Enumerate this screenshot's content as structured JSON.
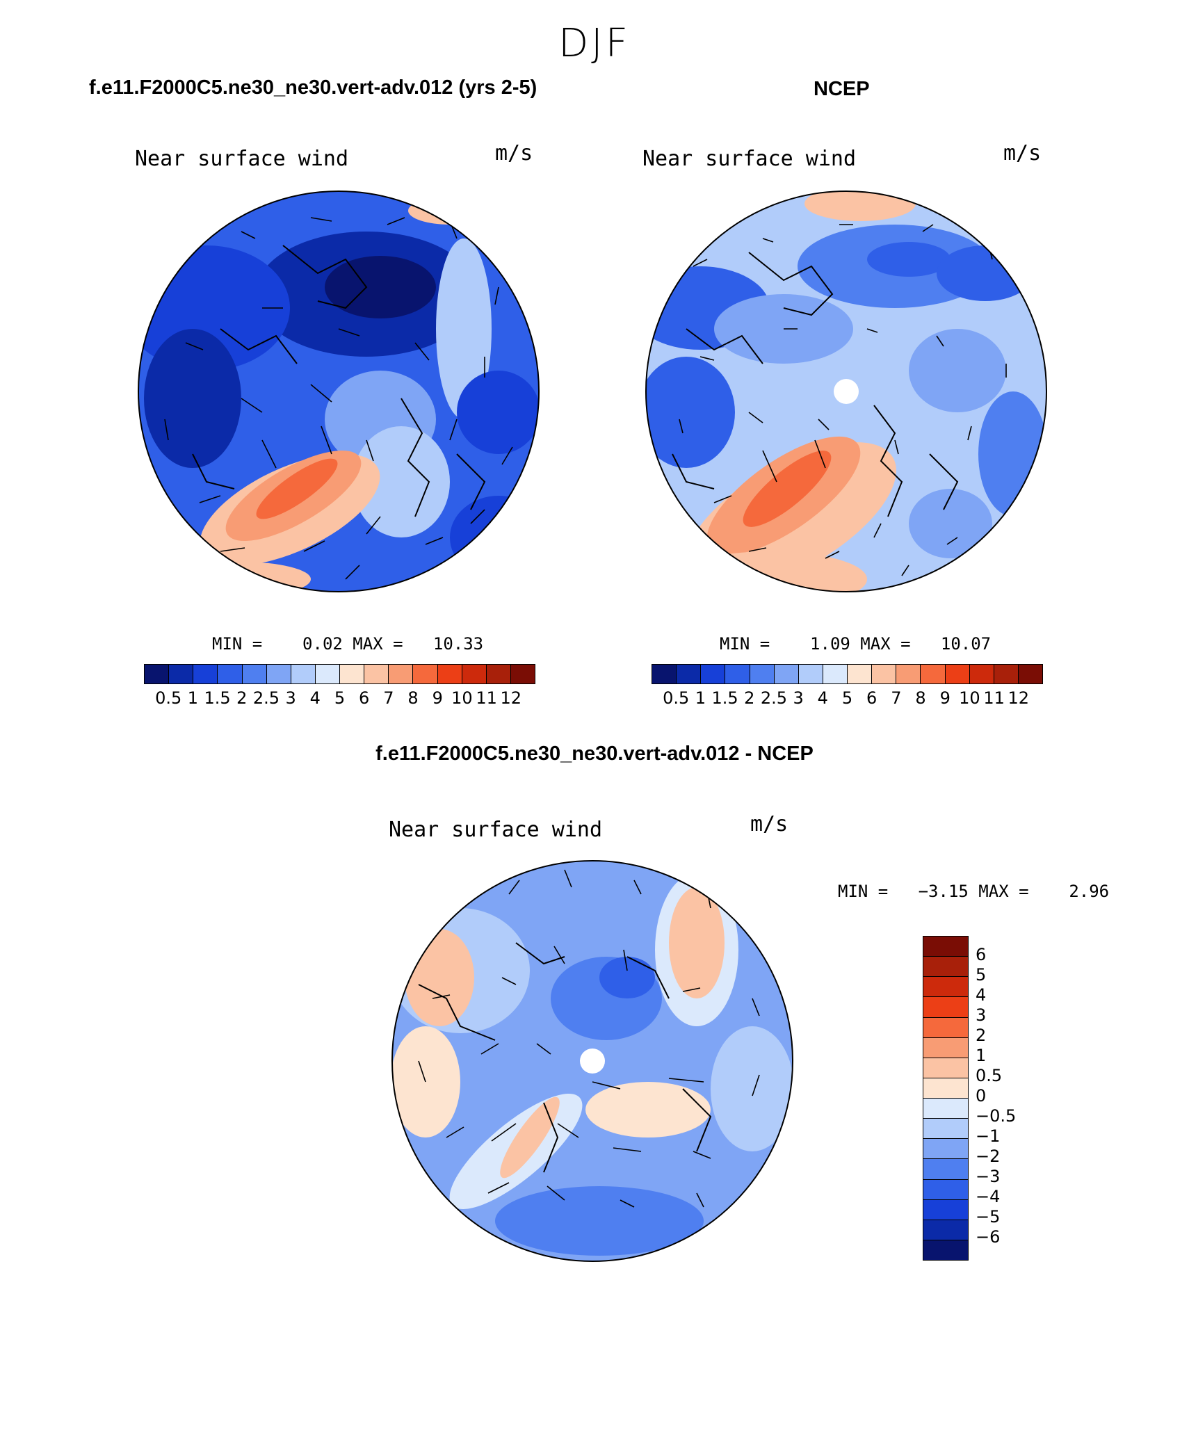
{
  "figure": {
    "season": "DJF",
    "panel1_title": "f.e11.F2000C5.ne30_ne30.vert-adv.012 (yrs 2-5)",
    "panel2_title": "NCEP",
    "diff_title": "f.e11.F2000C5.ne30_ne30.vert-adv.012 - NCEP"
  },
  "panels": [
    {
      "label_left": "Near surface wind",
      "label_right": "m/s",
      "stats": "MIN =    0.02 MAX =   10.33",
      "colorbar_ticks": [
        "0.5",
        "1",
        "1.5",
        "2",
        "2.5",
        "3",
        "4",
        "5",
        "6",
        "7",
        "8",
        "9",
        "10",
        "11",
        "12"
      ]
    },
    {
      "label_left": "Near surface wind",
      "label_right": "m/s",
      "stats": "MIN =    1.09 MAX =   10.07",
      "colorbar_ticks": [
        "0.5",
        "1",
        "1.5",
        "2",
        "2.5",
        "3",
        "4",
        "5",
        "6",
        "7",
        "8",
        "9",
        "10",
        "11",
        "12"
      ]
    },
    {
      "label_left": "Near surface wind",
      "label_right": "m/s",
      "stats": "MIN =   −3.15 MAX =    2.96",
      "colorbar_ticks": [
        "6",
        "5",
        "4",
        "3",
        "2",
        "1",
        "0.5",
        "0",
        "−0.5",
        "−1",
        "−2",
        "−3",
        "−4",
        "−5",
        "−6"
      ]
    }
  ],
  "colors": {
    "speed_scale": [
      "#08146e",
      "#0b2aa8",
      "#1740d8",
      "#2f5fe8",
      "#4f7ff0",
      "#7fa5f5",
      "#b1ccfa",
      "#dbe9fc",
      "#fde4d0",
      "#fbc3a4",
      "#f89c74",
      "#f5693c",
      "#ec3f16",
      "#cd2a0c",
      "#a8200a",
      "#7a0d05"
    ],
    "diff_scale": [
      "#7a0d05",
      "#a8200a",
      "#cd2a0c",
      "#ec3f16",
      "#f5693c",
      "#f89c74",
      "#fbc3a4",
      "#fde4d0",
      "#dbe9fc",
      "#b1ccfa",
      "#7fa5f5",
      "#4f7ff0",
      "#2f5fe8",
      "#1740d8",
      "#0b2aa8",
      "#08146e"
    ]
  }
}
